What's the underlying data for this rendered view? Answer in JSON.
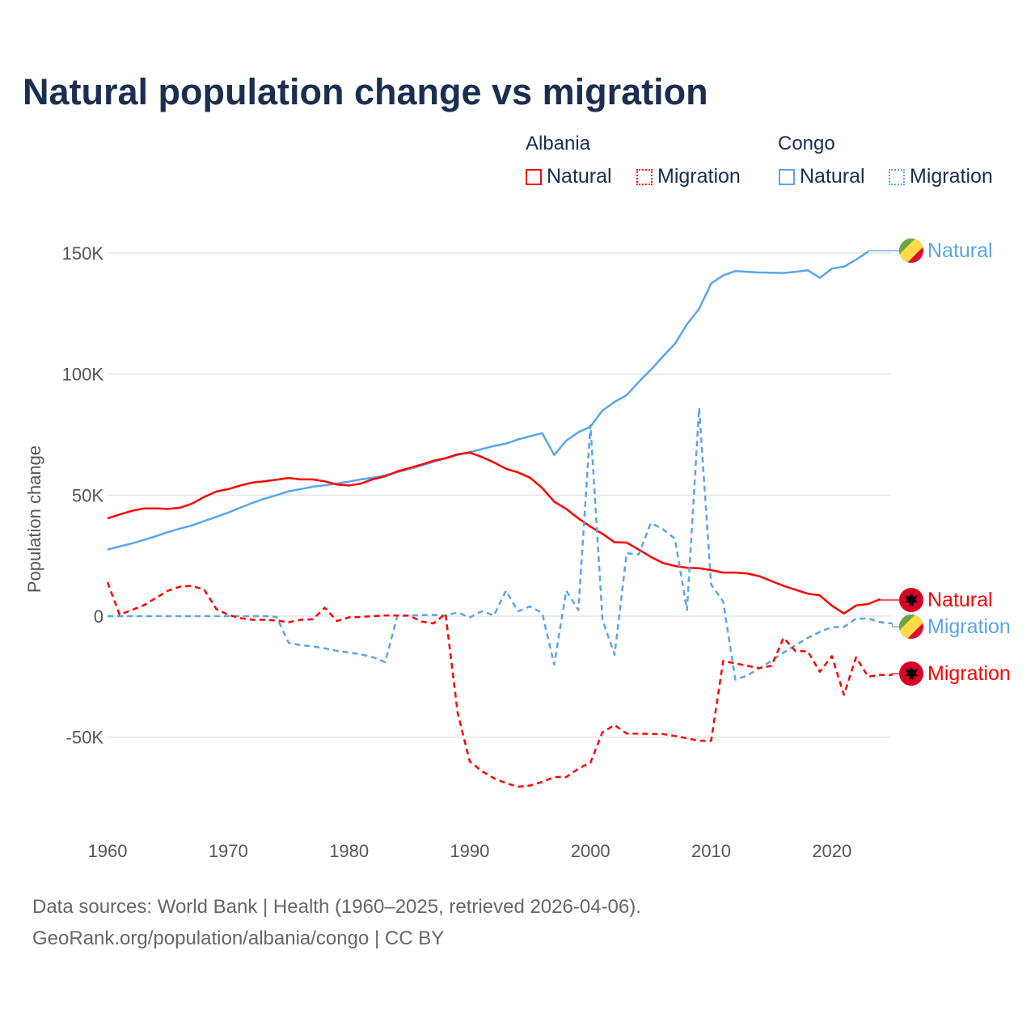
{
  "title": "Natural population change vs migration",
  "legend": {
    "groups": [
      {
        "name": "Albania",
        "items": [
          {
            "label": "Natural",
            "color": "#ff0000",
            "style": "solid"
          },
          {
            "label": "Migration",
            "color": "#ff0000",
            "style": "dotted"
          }
        ]
      },
      {
        "name": "Congo",
        "items": [
          {
            "label": "Natural",
            "color": "#5ba4ea",
            "style": "solid"
          },
          {
            "label": "Migration",
            "color": "#5ba4ea",
            "style": "dotted"
          }
        ]
      }
    ]
  },
  "footer": {
    "line1": "Data sources: World Bank | Health (1960–2025, retrieved 2026-04-06).",
    "line2": "GeoRank.org/population/albania/congo | CC BY"
  },
  "chart_data": {
    "type": "line",
    "title": "Natural population change vs migration",
    "xlabel": "",
    "ylabel": "Population change",
    "xlim": [
      1960,
      2025
    ],
    "ylim": [
      -80000,
      160000
    ],
    "x_ticks": [
      1960,
      1970,
      1980,
      1990,
      2000,
      2010,
      2020
    ],
    "y_ticks": [
      {
        "value": -50000,
        "label": "-50K"
      },
      {
        "value": 0,
        "label": "0"
      },
      {
        "value": 50000,
        "label": "50K"
      },
      {
        "value": 100000,
        "label": "100K"
      },
      {
        "value": 150000,
        "label": "150K"
      }
    ],
    "grid": "horizontal",
    "start_year": 1960,
    "series": [
      {
        "name": "Congo Natural",
        "end_label": "Natural",
        "country": "Congo",
        "color": "#5ba4ea",
        "dashed": false,
        "flag": "congo-flag",
        "values_k": [
          27.5,
          28.8,
          30,
          31.5,
          33,
          34.7,
          36.2,
          37.5,
          39.3,
          41,
          42.8,
          44.8,
          46.8,
          48.5,
          50,
          51.6,
          52.5,
          53.5,
          54.1,
          54.8,
          55.6,
          56.5,
          57.2,
          58.2,
          59.5,
          60.8,
          62.2,
          63.8,
          65.2,
          66.6,
          67.8,
          69,
          70.3,
          71.3,
          73,
          74.3,
          75.6,
          66.6,
          72.5,
          76,
          78.3,
          85,
          88.5,
          91.3,
          96.8,
          101.8,
          107.3,
          112.5,
          120.6,
          127,
          137.5,
          140.8,
          142.6,
          142.3,
          142,
          141.9,
          141.8,
          142.3,
          142.9,
          139.8,
          143.6,
          144.4,
          147.3,
          150.6
        ]
      },
      {
        "name": "Albania Natural",
        "end_label": "Natural",
        "country": "Albania",
        "color": "#ff0000",
        "dashed": false,
        "flag": "albania-flag",
        "values_k": [
          40.4,
          42,
          43.5,
          44.5,
          44.5,
          44.3,
          44.8,
          46.5,
          49.2,
          51.5,
          52.5,
          54,
          55.2,
          55.7,
          56.4,
          57.1,
          56.5,
          56.5,
          55.7,
          54.4,
          54,
          54.8,
          56.6,
          57.8,
          59.8,
          61.2,
          62.6,
          64.2,
          65.3,
          66.9,
          67.6,
          65.8,
          63.5,
          60.9,
          59.4,
          57.2,
          53,
          47.3,
          44.3,
          40.4,
          37,
          34,
          30.5,
          30.4,
          27.5,
          24.5,
          22,
          20.7,
          20,
          19.8,
          19,
          18,
          18,
          17.6,
          16.5,
          14.5,
          12.5,
          10.9,
          9.3,
          8.6,
          4.3,
          1.1,
          4.4,
          5,
          7
        ]
      },
      {
        "name": "Congo Migration",
        "end_label": "Migration",
        "country": "Congo",
        "color": "#5ba4ea",
        "dashed": true,
        "flag": "congo-flag",
        "values_k": [
          0,
          0,
          0,
          0,
          0,
          0,
          0,
          0,
          0,
          0,
          0,
          0,
          0,
          0,
          -0.3,
          -11,
          -12,
          -12.5,
          -13.3,
          -14.3,
          -15,
          -15.8,
          -17,
          -19,
          0,
          0.3,
          0.4,
          0.5,
          0.2,
          1.5,
          -0.5,
          2,
          0.3,
          10.5,
          2,
          4,
          1.3,
          -20,
          10.5,
          2.5,
          79,
          -1.5,
          -16,
          26,
          25.5,
          38.5,
          36,
          32,
          2.5,
          86,
          13,
          6,
          -26.2,
          -24.5,
          -21.5,
          -18.5,
          -15,
          -12,
          -9,
          -6.5,
          -4.5,
          -4.5,
          -1,
          -1,
          -2.5,
          -3
        ]
      },
      {
        "name": "Albania Migration",
        "end_label": "Migration",
        "country": "Albania",
        "color": "#ff0000",
        "dashed": true,
        "flag": "albania-flag",
        "values_k": [
          14,
          0.6,
          2.5,
          4.5,
          7.5,
          10.5,
          12.2,
          12.5,
          11,
          3,
          0.5,
          -0.8,
          -1.5,
          -1.5,
          -1.8,
          -2.5,
          -1.5,
          -1.3,
          3.5,
          -2,
          -0.5,
          -0.3,
          0,
          0.3,
          0.3,
          0.2,
          -2.2,
          -3,
          1,
          -40,
          -60,
          -64,
          -67,
          -69,
          -70.5,
          -70,
          -68.5,
          -66.5,
          -66.5,
          -63,
          -60.5,
          -48,
          -45,
          -48.5,
          -48.5,
          -48.7,
          -48.7,
          -49.5,
          -50.5,
          -51.5,
          -51.5,
          -18.5,
          -19.5,
          -20.5,
          -21.5,
          -20.5,
          -9,
          -14.5,
          -14.5,
          -23,
          -16.5,
          -32.5,
          -17,
          -25,
          -24.3,
          -24.3
        ]
      }
    ]
  }
}
